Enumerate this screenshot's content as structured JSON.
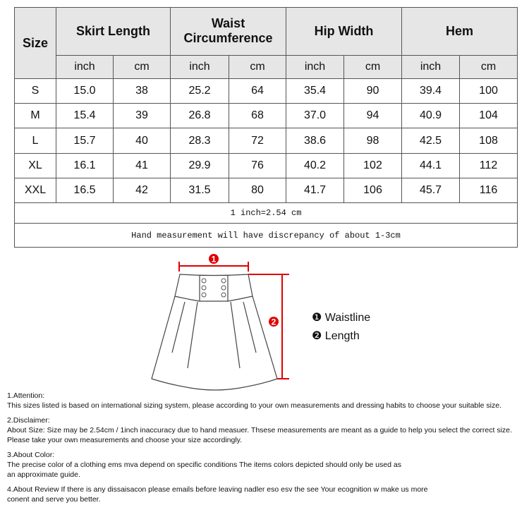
{
  "table": {
    "size_header": "Size",
    "groups": [
      "Skirt Length",
      "Waist Circumference",
      "Hip Width",
      "Hem"
    ],
    "units": [
      "inch",
      "cm",
      "inch",
      "cm",
      "inch",
      "cm",
      "inch",
      "cm"
    ],
    "rows": [
      [
        "S",
        "15.0",
        "38",
        "25.2",
        "64",
        "35.4",
        "90",
        "39.4",
        "100"
      ],
      [
        "M",
        "15.4",
        "39",
        "26.8",
        "68",
        "37.0",
        "94",
        "40.9",
        "104"
      ],
      [
        "L",
        "15.7",
        "40",
        "28.3",
        "72",
        "38.6",
        "98",
        "42.5",
        "108"
      ],
      [
        "XL",
        "16.1",
        "41",
        "29.9",
        "76",
        "40.2",
        "102",
        "44.1",
        "112"
      ],
      [
        "XXL",
        "16.5",
        "42",
        "31.5",
        "80",
        "41.7",
        "106",
        "45.7",
        "116"
      ]
    ],
    "conversion": "1 inch=2.54 cm",
    "discrepancy": "Hand measurement will have discrepancy of about 1-3cm"
  },
  "diagram": {
    "marker_color": "#e00000",
    "marker1": "1",
    "marker2": "2",
    "legend": [
      {
        "mark": "❶",
        "label": "Waistline"
      },
      {
        "mark": "❷",
        "label": "Length"
      }
    ]
  },
  "notes": [
    {
      "title": "1.Attention:",
      "lines": [
        "This sizes listed is based on international sizing system, please according to your own measurements and dressing habits to choose your suitable size."
      ]
    },
    {
      "title": "2.Disclaimer:",
      "lines": [
        "About Size: Size may be 2.54cm / 1inch inaccuracy due to hand measuer. Thsese measurements are meant as a guide to help you select the correct size.",
        "Please take your own measurements and choose your size accordingly."
      ]
    },
    {
      "title": "3.About Color:",
      "lines": [
        "The precise color of a clothing ems mva depend on specific conditions The items colors depicted should only be used as",
        "an approximate guide."
      ]
    },
    {
      "title": "4.About Review If there is any dissaisacon please emails before leaving nadler eso esv the see Your ecognition w make us more",
      "lines": [
        "conent and serve you better."
      ]
    }
  ]
}
